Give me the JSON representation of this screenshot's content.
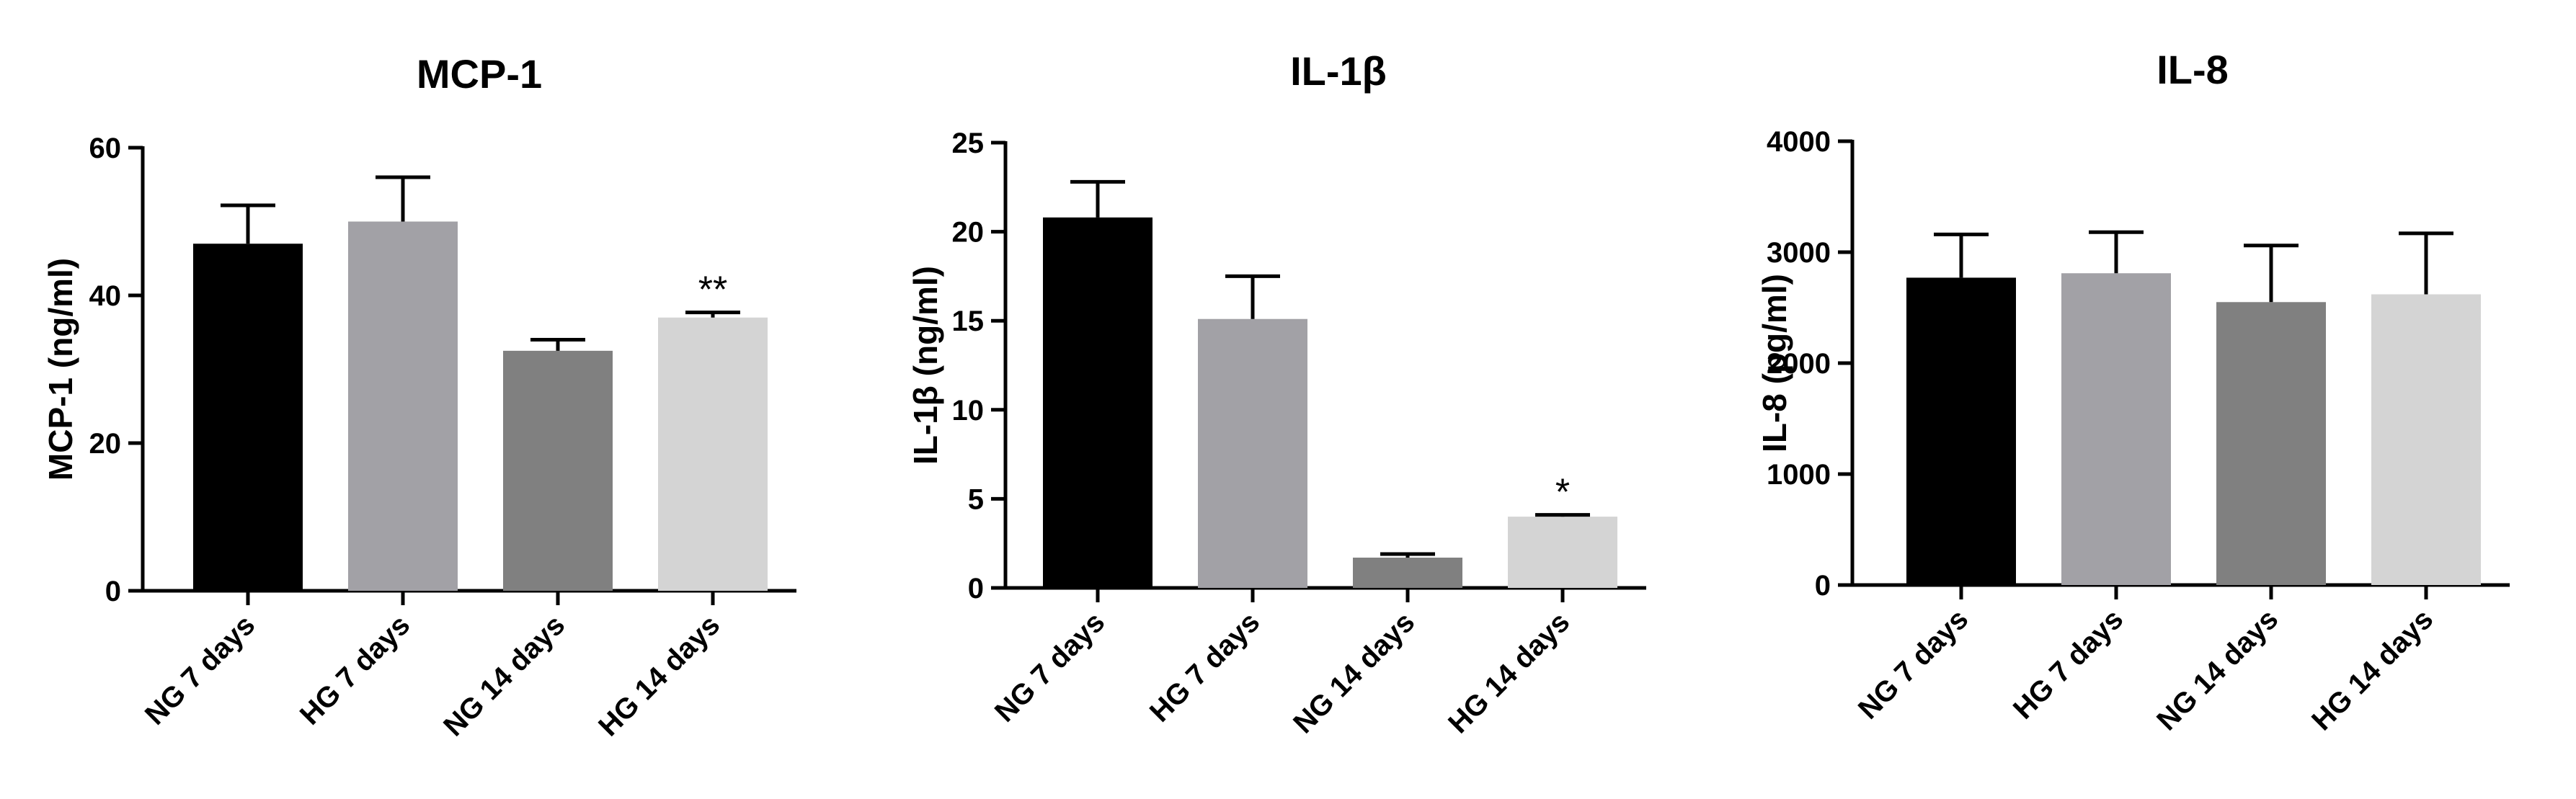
{
  "chart_data": [
    {
      "type": "bar",
      "title": "MCP-1",
      "ylabel": "MCP-1 (ng/ml)",
      "categories": [
        "NG 7 days",
        "HG 7 days",
        "NG 14 days",
        "HG 14 days"
      ],
      "values": [
        47,
        50,
        32.5,
        37
      ],
      "errors": [
        5.2,
        6,
        1.5,
        0.7
      ],
      "annotations": [
        "",
        "",
        "",
        "**"
      ],
      "colors": [
        "#000000",
        "#a2a1a6",
        "#808080",
        "#d4d4d4"
      ],
      "ylim": [
        0,
        60
      ],
      "yticks": [
        0,
        20,
        40,
        60
      ]
    },
    {
      "type": "bar",
      "title": "IL-1β",
      "ylabel": "IL-1β (ng/ml)",
      "categories": [
        "NG 7 days",
        "HG 7 days",
        "NG 14 days",
        "HG 14 days"
      ],
      "values": [
        20.8,
        15.1,
        1.7,
        4
      ],
      "errors": [
        2,
        2.4,
        0.2,
        0.1
      ],
      "annotations": [
        "",
        "",
        "",
        "*"
      ],
      "colors": [
        "#000000",
        "#a2a1a6",
        "#808080",
        "#d4d4d4"
      ],
      "ylim": [
        0,
        25
      ],
      "yticks": [
        0,
        5,
        10,
        15,
        20,
        25
      ]
    },
    {
      "type": "bar",
      "title": "IL-8",
      "ylabel": "IL-8 (pg/ml)",
      "categories": [
        "NG 7 days",
        "HG 7 days",
        "NG 14 days",
        "HG 14 days"
      ],
      "values": [
        2770,
        2810,
        2550,
        2620
      ],
      "errors": [
        390,
        370,
        510,
        550
      ],
      "annotations": [
        "",
        "",
        "",
        ""
      ],
      "colors": [
        "#000000",
        "#a2a1a6",
        "#808080",
        "#d4d4d4"
      ],
      "ylim": [
        0,
        4000
      ],
      "yticks": [
        0,
        1000,
        2000,
        3000,
        4000
      ]
    }
  ]
}
